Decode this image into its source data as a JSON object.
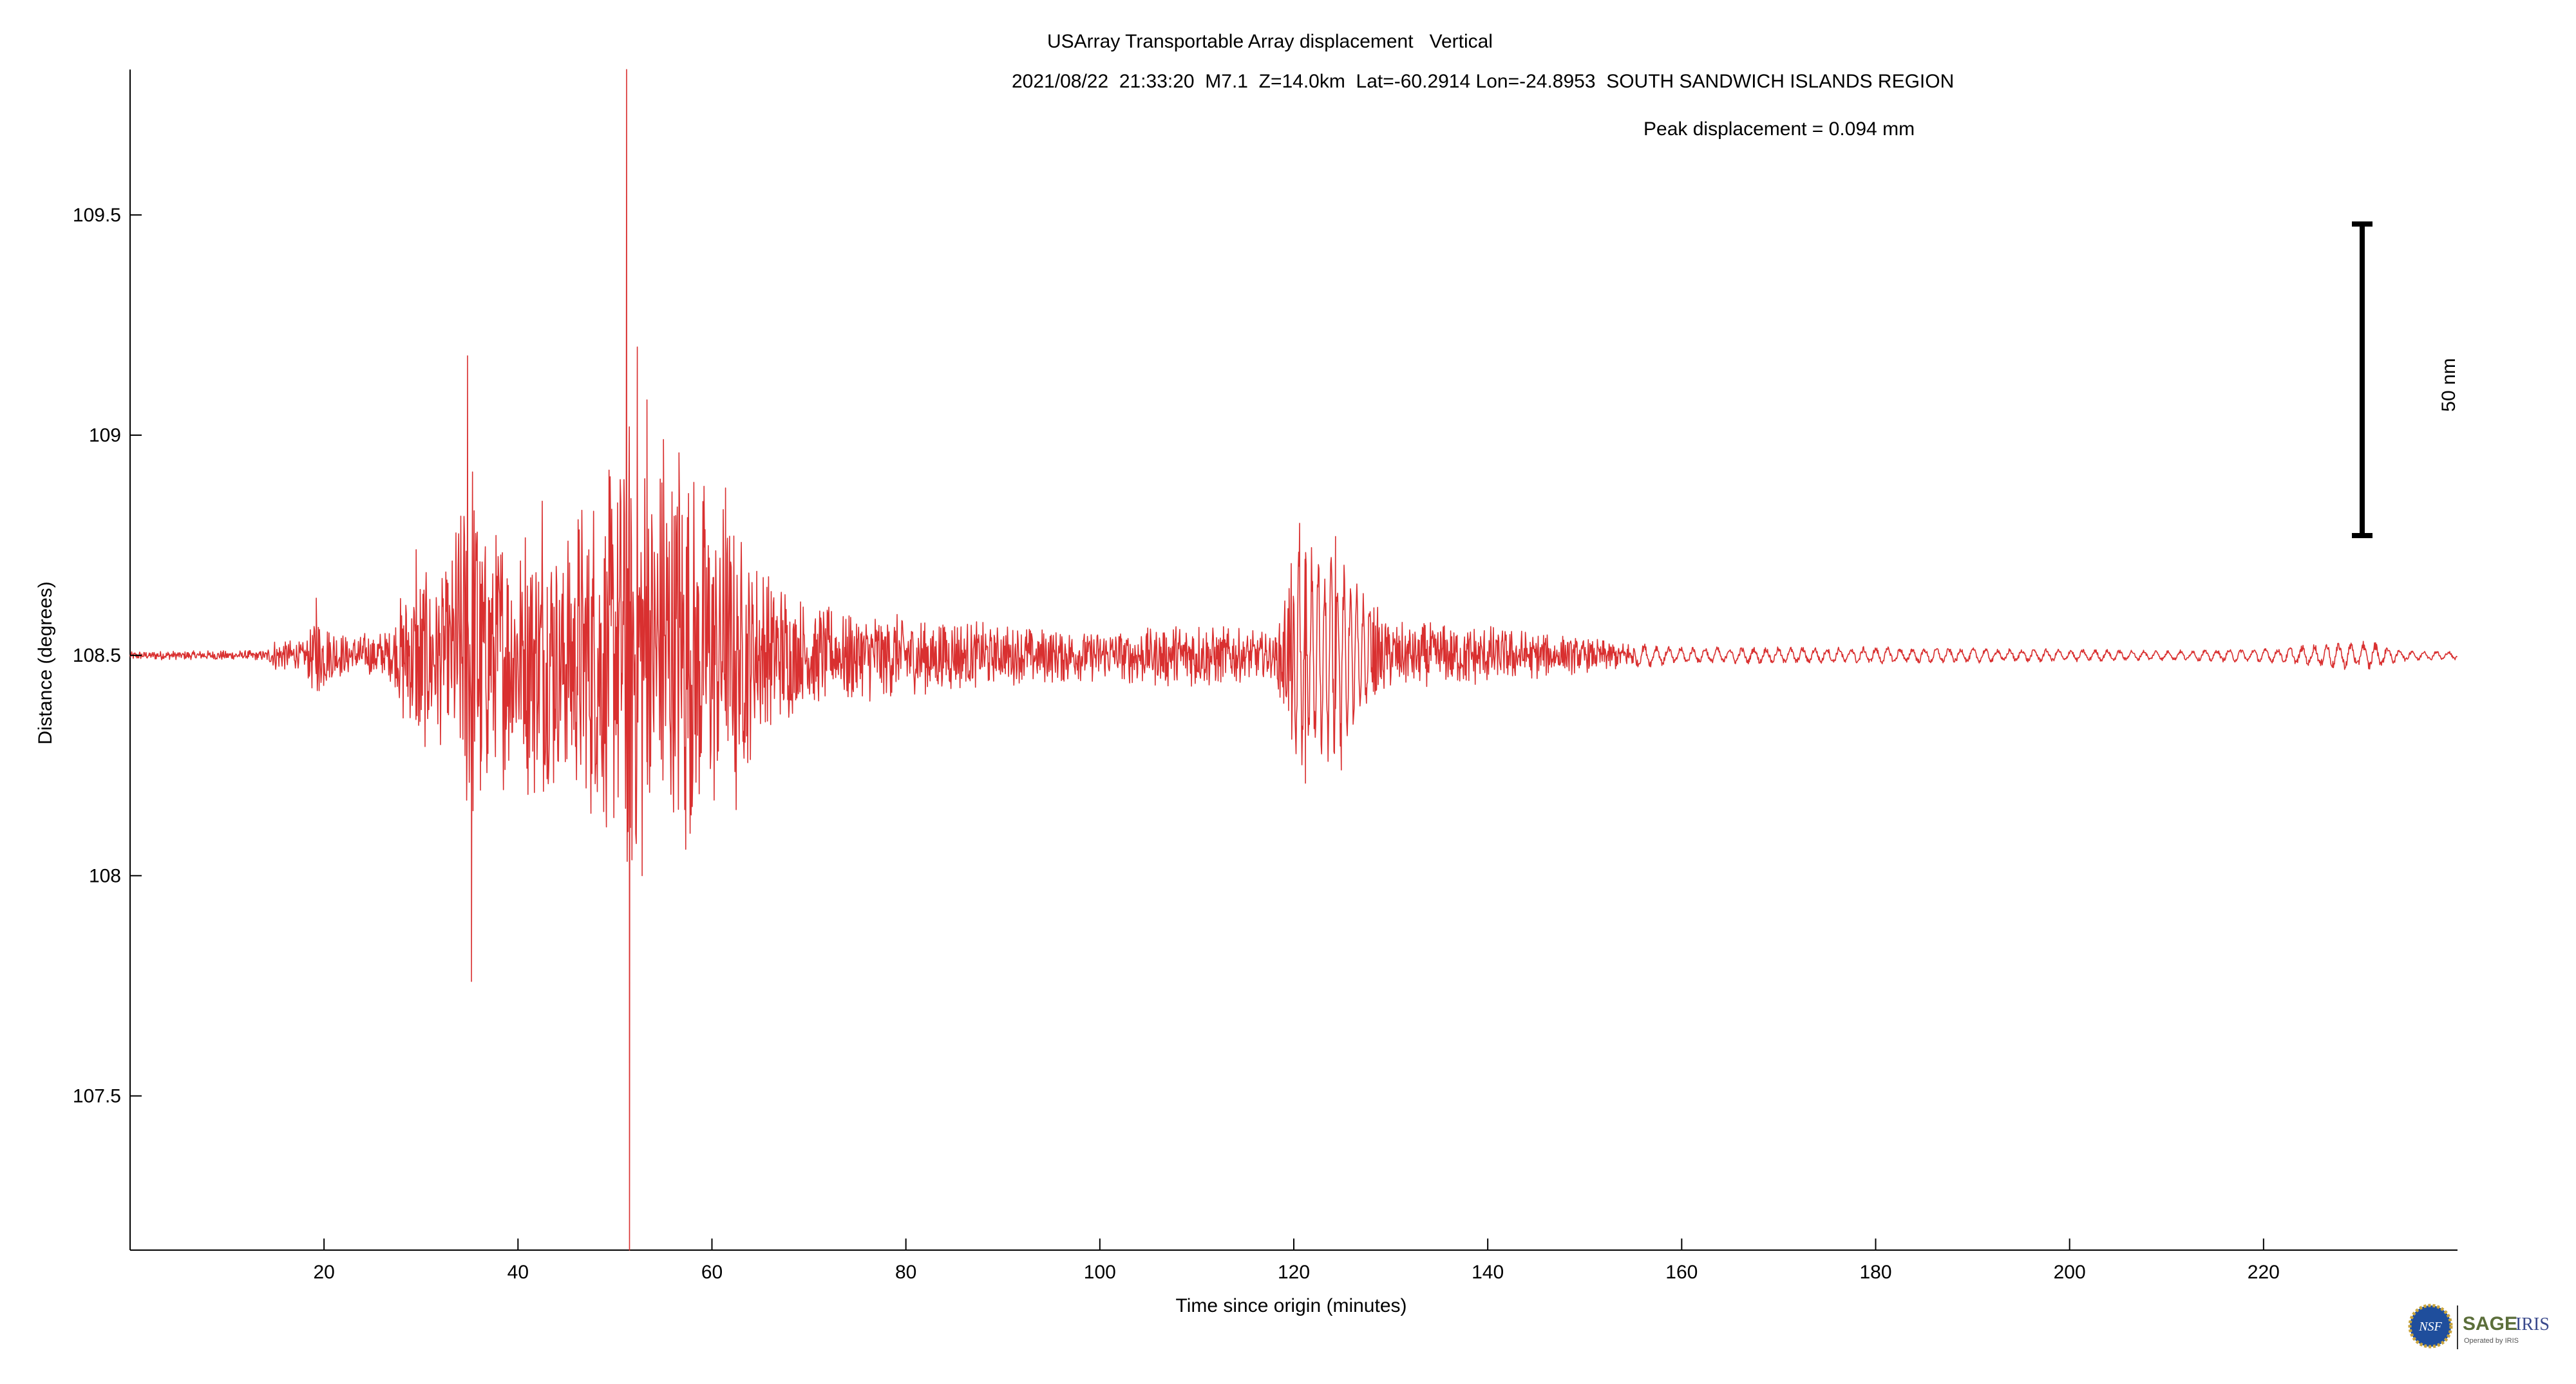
{
  "header": {
    "title": "USArray Transportable Array displacement   Vertical",
    "event": "2021/08/22  21:33:20  M7.1  Z=14.0km  Lat=-60.2914 Lon=-24.8953  SOUTH SANDWICH ISLANDS REGION",
    "peak": "Peak displacement = 0.094 mm"
  },
  "chart_data": {
    "type": "line",
    "xlabel": "Time since origin (minutes)",
    "ylabel": "Distance (degrees)",
    "xlim": [
      0,
      240
    ],
    "ylim": [
      107.15,
      109.83
    ],
    "x_ticks": [
      20,
      40,
      60,
      80,
      100,
      120,
      140,
      160,
      180,
      200,
      220
    ],
    "y_ticks": [
      107.5,
      108,
      108.5,
      109,
      109.5
    ],
    "trace_color": "#d93030",
    "baseline": 108.5,
    "series": [
      {
        "color": "#d93030",
        "envelope": [
          {
            "x": 0,
            "y": 0.01
          },
          {
            "x": 14,
            "y": 0.012
          },
          {
            "x": 15,
            "y": 0.04
          },
          {
            "x": 18,
            "y": 0.03
          },
          {
            "x": 19,
            "y": 0.1
          },
          {
            "x": 22,
            "y": 0.05
          },
          {
            "x": 27,
            "y": 0.06
          },
          {
            "x": 28.5,
            "y": 0.2
          },
          {
            "x": 30,
            "y": 0.22
          },
          {
            "x": 33,
            "y": 0.2
          },
          {
            "x": 35,
            "y": 0.55
          },
          {
            "x": 37,
            "y": 0.3
          },
          {
            "x": 42,
            "y": 0.33
          },
          {
            "x": 46,
            "y": 0.35
          },
          {
            "x": 50,
            "y": 0.45
          },
          {
            "x": 51.5,
            "y": 0.6
          },
          {
            "x": 53,
            "y": 0.5
          },
          {
            "x": 57,
            "y": 0.45
          },
          {
            "x": 61,
            "y": 0.38
          },
          {
            "x": 64,
            "y": 0.24
          },
          {
            "x": 70,
            "y": 0.12
          },
          {
            "x": 80,
            "y": 0.1
          },
          {
            "x": 90,
            "y": 0.07
          },
          {
            "x": 100,
            "y": 0.06
          },
          {
            "x": 110,
            "y": 0.08
          },
          {
            "x": 118,
            "y": 0.05
          },
          {
            "x": 120,
            "y": 0.27
          },
          {
            "x": 124,
            "y": 0.25
          },
          {
            "x": 127,
            "y": 0.15
          },
          {
            "x": 130,
            "y": 0.08
          },
          {
            "x": 140,
            "y": 0.07
          },
          {
            "x": 150,
            "y": 0.04
          },
          {
            "x": 160,
            "y": 0.02
          },
          {
            "x": 170,
            "y": 0.02
          },
          {
            "x": 180,
            "y": 0.02
          },
          {
            "x": 200,
            "y": 0.015
          },
          {
            "x": 210,
            "y": 0.012
          },
          {
            "x": 222,
            "y": 0.018
          },
          {
            "x": 226,
            "y": 0.03
          },
          {
            "x": 231,
            "y": 0.035
          },
          {
            "x": 234,
            "y": 0.015
          },
          {
            "x": 240,
            "y": 0.01
          }
        ],
        "spikes": [
          {
            "x": 19.2,
            "y": 108.63
          },
          {
            "x": 19.5,
            "y": 108.42
          },
          {
            "x": 29.5,
            "y": 108.74
          },
          {
            "x": 29.9,
            "y": 108.35
          },
          {
            "x": 34.8,
            "y": 109.18
          },
          {
            "x": 35.2,
            "y": 107.76
          },
          {
            "x": 35.8,
            "y": 108.78
          },
          {
            "x": 36.2,
            "y": 108.26
          },
          {
            "x": 42.5,
            "y": 108.85
          },
          {
            "x": 43,
            "y": 108.22
          },
          {
            "x": 51.2,
            "y": 109.83
          },
          {
            "x": 51.35,
            "y": 108.1
          },
          {
            "x": 51.5,
            "y": 107.15
          },
          {
            "x": 52.3,
            "y": 109.2
          },
          {
            "x": 52.8,
            "y": 108.0
          },
          {
            "x": 53.3,
            "y": 109.08
          },
          {
            "x": 55,
            "y": 108.99
          },
          {
            "x": 56.6,
            "y": 108.96
          },
          {
            "x": 57.3,
            "y": 108.06
          },
          {
            "x": 61.4,
            "y": 108.88
          },
          {
            "x": 62.5,
            "y": 108.15
          },
          {
            "x": 120.6,
            "y": 108.8
          },
          {
            "x": 121.2,
            "y": 108.21
          },
          {
            "x": 124.3,
            "y": 108.77
          },
          {
            "x": 124.9,
            "y": 108.24
          }
        ]
      }
    ],
    "scale_bar": {
      "label": "50 nm",
      "top": 109.47,
      "bottom": 108.78
    }
  },
  "logo": {
    "nsf_text": "NSF",
    "sage_text": "SAGE",
    "iris_text": "IRIS",
    "sub_text": "Operated by IRIS"
  }
}
